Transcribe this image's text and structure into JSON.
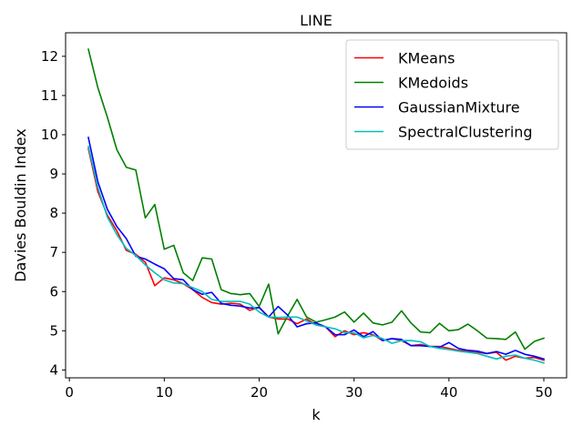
{
  "chart_data": {
    "type": "line",
    "title": "LINE",
    "xlabel": "k",
    "ylabel": "Davies Bouldin Index",
    "xlim": [
      -0.4,
      52.4
    ],
    "ylim": [
      3.8,
      12.6
    ],
    "xticks": [
      0,
      10,
      20,
      30,
      40,
      50
    ],
    "yticks": [
      4,
      5,
      6,
      7,
      8,
      9,
      10,
      11,
      12
    ],
    "grid": false,
    "legend_position": "upper-right",
    "x": [
      2,
      3,
      4,
      5,
      6,
      7,
      8,
      9,
      10,
      11,
      12,
      13,
      14,
      15,
      16,
      17,
      18,
      19,
      20,
      21,
      22,
      23,
      24,
      25,
      26,
      27,
      28,
      29,
      30,
      31,
      32,
      33,
      34,
      35,
      36,
      37,
      38,
      39,
      40,
      41,
      42,
      43,
      44,
      45,
      46,
      47,
      48,
      49,
      50
    ],
    "series": [
      {
        "name": "KMeans",
        "color": "#ff0000",
        "values": [
          9.65,
          8.55,
          7.95,
          7.55,
          7.05,
          6.95,
          6.75,
          6.15,
          6.35,
          6.3,
          6.2,
          6.05,
          5.85,
          5.72,
          5.68,
          5.7,
          5.68,
          5.52,
          5.6,
          5.35,
          5.3,
          5.3,
          5.18,
          5.3,
          5.15,
          5.1,
          4.85,
          5.0,
          4.9,
          4.95,
          4.9,
          4.75,
          4.8,
          4.75,
          4.62,
          4.65,
          4.6,
          4.6,
          4.55,
          4.5,
          4.48,
          4.45,
          4.42,
          4.45,
          4.25,
          4.35,
          4.3,
          4.32,
          4.25
        ]
      },
      {
        "name": "KMedoids",
        "color": "#008000",
        "values": [
          12.18,
          11.2,
          10.45,
          9.62,
          9.17,
          9.1,
          7.88,
          8.22,
          7.08,
          7.18,
          6.48,
          6.28,
          6.86,
          6.83,
          6.05,
          5.95,
          5.92,
          5.95,
          5.62,
          6.19,
          4.92,
          5.38,
          5.8,
          5.35,
          5.22,
          5.28,
          5.35,
          5.48,
          5.22,
          5.45,
          5.2,
          5.15,
          5.22,
          5.51,
          5.2,
          4.97,
          4.95,
          5.19,
          5.0,
          5.03,
          5.17,
          5.0,
          4.81,
          4.8,
          4.78,
          4.97,
          4.53,
          4.73,
          4.81
        ]
      },
      {
        "name": "GaussianMixture",
        "color": "#0000ff",
        "values": [
          9.93,
          8.8,
          8.1,
          7.66,
          7.35,
          6.9,
          6.83,
          6.7,
          6.58,
          6.33,
          6.3,
          6.05,
          5.93,
          5.98,
          5.7,
          5.65,
          5.63,
          5.58,
          5.59,
          5.35,
          5.62,
          5.4,
          5.1,
          5.18,
          5.2,
          5.1,
          4.9,
          4.9,
          5.02,
          4.85,
          4.98,
          4.75,
          4.8,
          4.78,
          4.62,
          4.62,
          4.6,
          4.58,
          4.7,
          4.55,
          4.5,
          4.48,
          4.42,
          4.47,
          4.4,
          4.5,
          4.4,
          4.35,
          4.28
        ]
      },
      {
        "name": "SpectralClustering",
        "color": "#00bfbf",
        "values": [
          9.7,
          8.65,
          7.9,
          7.45,
          7.1,
          6.92,
          6.68,
          6.48,
          6.3,
          6.22,
          6.2,
          6.1,
          6.0,
          5.8,
          5.75,
          5.75,
          5.75,
          5.68,
          5.48,
          5.35,
          5.34,
          5.35,
          5.35,
          5.25,
          5.15,
          5.1,
          5.05,
          4.95,
          4.95,
          4.82,
          4.88,
          4.8,
          4.68,
          4.75,
          4.75,
          4.72,
          4.6,
          4.55,
          4.52,
          4.48,
          4.45,
          4.42,
          4.35,
          4.28,
          4.35,
          4.38,
          4.3,
          4.25,
          4.18
        ]
      }
    ]
  }
}
